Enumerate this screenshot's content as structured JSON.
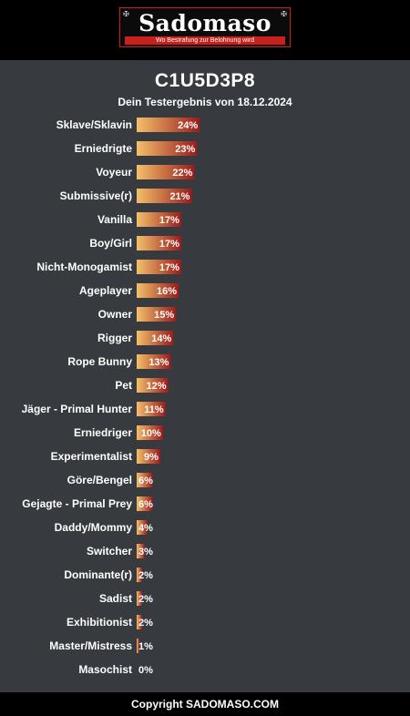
{
  "header": {
    "logo_text": "Sadomaso",
    "tagline": "Wo Bestrafung zur Belohnung wird"
  },
  "result": {
    "code": "C1U5D3P8",
    "subtitle": "Dein Testergebnis von 18.12.2024"
  },
  "colors": {
    "bar_start": "#f3c06a",
    "bar_end": "#9b1b1b",
    "panel_bg": "#373a3f",
    "accent_red": "#c8201c"
  },
  "chart_data": {
    "type": "bar",
    "orientation": "horizontal",
    "categories": [
      "Sklave/Sklavin",
      "Erniedrigte",
      "Voyeur",
      "Submissive(r)",
      "Vanilla",
      "Boy/Girl",
      "Nicht-Monogamist",
      "Ageplayer",
      "Owner",
      "Rigger",
      "Rope Bunny",
      "Pet",
      "Jäger - Primal Hunter",
      "Erniedriger",
      "Experimentalist",
      "Göre/Bengel",
      "Gejagte - Primal Prey",
      "Daddy/Mommy",
      "Switcher",
      "Dominante(r)",
      "Sadist",
      "Exhibitionist",
      "Master/Mistress",
      "Masochist"
    ],
    "values": [
      24,
      23,
      22,
      21,
      17,
      17,
      17,
      16,
      15,
      14,
      13,
      12,
      11,
      10,
      9,
      6,
      6,
      4,
      3,
      2,
      2,
      2,
      1,
      0
    ],
    "value_labels": [
      "24%",
      "23%",
      "22%",
      "21%",
      "17%",
      "17%",
      "17%",
      "16%",
      "15%",
      "14%",
      "13%",
      "12%",
      "11%",
      "10%",
      "9%",
      "6%",
      "6%",
      "4%",
      "3%",
      "2%",
      "2%",
      "2%",
      "1%",
      "0%"
    ],
    "unit": "%",
    "xlim": [
      0,
      100
    ],
    "grid": false
  },
  "footer": {
    "copyright": "Copyright SADOMASO.COM"
  }
}
